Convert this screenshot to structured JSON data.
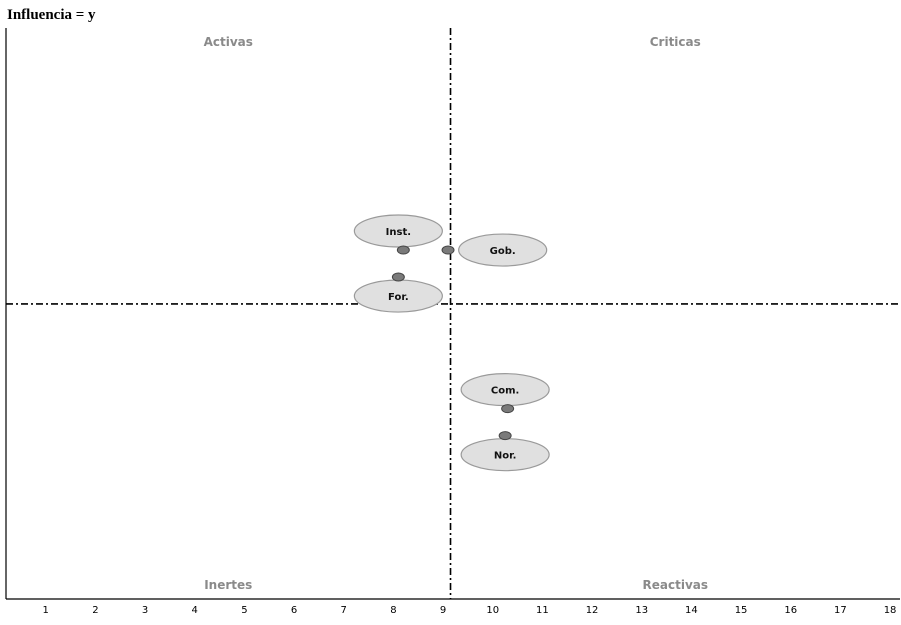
{
  "chart_data": {
    "type": "scatter",
    "title": "",
    "ylabel": "Influencia = y",
    "xlabel": "",
    "xlim": [
      0.2,
      18.2
    ],
    "ylim": [
      0,
      18
    ],
    "x_ticks": [
      1,
      2,
      3,
      4,
      5,
      6,
      7,
      8,
      9,
      10,
      11,
      12,
      13,
      14,
      15,
      16,
      17,
      18
    ],
    "divider_x": 9.15,
    "divider_y": 9.3,
    "grid": false,
    "legend": "none",
    "quadrants": {
      "top_left": "Activas",
      "top_right": "Criticas",
      "bottom_left": "Inertes",
      "bottom_right": "Reactivas"
    },
    "points": [
      {
        "label": "Inst.",
        "x": 8.2,
        "y": 11.0,
        "label_position": "above",
        "label_dx": -0.1,
        "label_dy": 0.6
      },
      {
        "label": "Gob.",
        "x": 9.1,
        "y": 11.0,
        "label_position": "right",
        "label_dx": 1.1,
        "label_dy": 0.0
      },
      {
        "label": "For.",
        "x": 8.1,
        "y": 10.15,
        "label_position": "below",
        "label_dx": 0.0,
        "label_dy": -0.6
      },
      {
        "label": "Com.",
        "x": 10.3,
        "y": 6.0,
        "label_position": "above",
        "label_dx": -0.05,
        "label_dy": 0.6
      },
      {
        "label": "Nor.",
        "x": 10.25,
        "y": 5.15,
        "label_position": "below",
        "label_dx": 0.0,
        "label_dy": -0.6
      }
    ],
    "colors": {
      "marker": "#7a7a7a",
      "marker_stroke": "#444444",
      "bubble_fill": "#e0e0e0",
      "bubble_stroke": "#9a9a9a",
      "divider": "#000000",
      "axis": "#000000",
      "quadrant_text": "#8a8a8a"
    }
  }
}
